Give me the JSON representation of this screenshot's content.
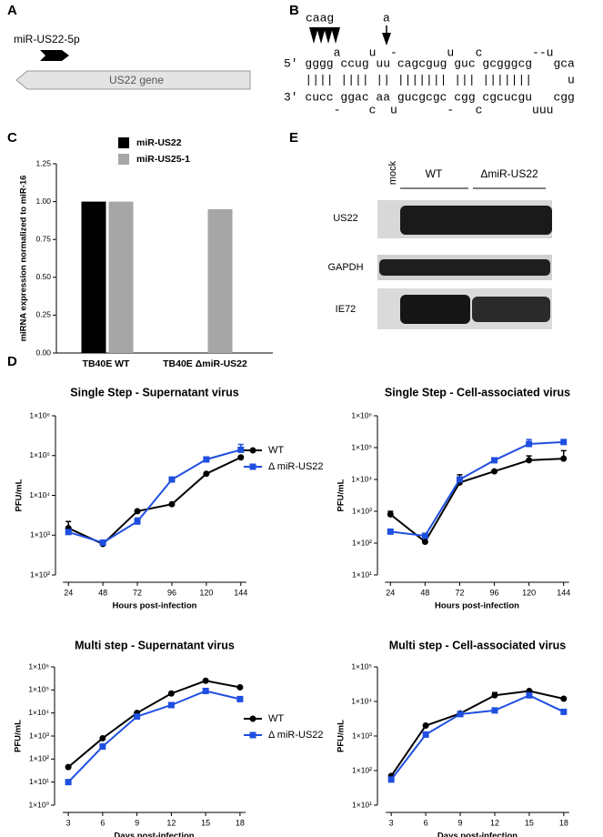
{
  "panel_labels": [
    "A",
    "B",
    "C",
    "D",
    "E"
  ],
  "gene_diagram": {
    "mirna": "miR-US22-5p",
    "gene": "US22 gene"
  },
  "hairpin": {
    "mutation_multi": "caag",
    "mutation_single": "a",
    "lines": [
      "       a    u  -       u   c       --u",
      "5′ gggg ccug uu cagcgug guc gcgggcg   gca",
      "   |||| |||| || ||||||| ||| |||||||     u",
      "3′ cucc ggac aa gucgcgc cgg cgcucgu   cgg",
      "       -    c  u       -   c       uuu"
    ]
  },
  "blot": {
    "lane_label": "mock",
    "groups": [
      "WT",
      "ΔmiR-US22"
    ],
    "rows": [
      "US22",
      "GAPDH",
      "IE72"
    ]
  },
  "chart_data": [
    {
      "type": "bar",
      "ylabel": "miRNA expression normalized to miR-16",
      "categories": [
        "TB40E WT",
        "TB40E ΔmiR-US22"
      ],
      "series": [
        {
          "name": "miR-US22",
          "color": "#000000",
          "values": [
            1.0,
            0
          ]
        },
        {
          "name": "miR-US25-1",
          "color": "#a6a6a6",
          "values": [
            1.0,
            0.95
          ]
        }
      ],
      "ylim": [
        0,
        1.25
      ],
      "yticks": [
        {
          "value": 0,
          "label": "0.00"
        },
        {
          "value": 0.25,
          "label": "0.25"
        },
        {
          "value": 0.5,
          "label": "0.50"
        },
        {
          "value": 0.75,
          "label": "0.75"
        },
        {
          "value": 1,
          "label": "1.00"
        },
        {
          "value": 1.25,
          "label": "1.25"
        }
      ]
    },
    {
      "type": "line",
      "title": "Single Step - Supernatant virus",
      "xlabel": "Hours post-infection",
      "ylabel": "PFU/mL",
      "log_y": true,
      "x": [
        24,
        48,
        72,
        96,
        120,
        144
      ],
      "xlim": [
        15,
        153
      ],
      "xticks": [
        24,
        48,
        72,
        96,
        120,
        144
      ],
      "ylim": [
        100,
        1000000
      ],
      "yticks": [
        {
          "value": 100,
          "label": "1×10²"
        },
        {
          "value": 1000,
          "label": "1×10³"
        },
        {
          "value": 10000,
          "label": "1×10⁴"
        },
        {
          "value": 100000,
          "label": "1×10⁵"
        },
        {
          "value": 1000000,
          "label": "1×10⁶"
        }
      ],
      "series": [
        {
          "name": "WT",
          "color": "#000000",
          "values": [
            1500,
            600,
            4000,
            6000,
            35000,
            90000
          ],
          "errors": [
            700,
            null,
            null,
            null,
            null,
            null
          ]
        },
        {
          "name": "Δ miR-US22",
          "color": "#1f4fe0",
          "values": [
            1200,
            650,
            2200,
            25000,
            80000,
            140000
          ],
          "errors": [
            null,
            null,
            500,
            null,
            null,
            50000
          ]
        }
      ]
    },
    {
      "type": "line",
      "title": "Single Step - Cell-associated virus",
      "xlabel": "Hours post-infection",
      "ylabel": "PFU/mL",
      "log_y": true,
      "x": [
        24,
        48,
        72,
        96,
        120,
        144
      ],
      "xlim": [
        15,
        153
      ],
      "xticks": [
        24,
        48,
        72,
        96,
        120,
        144
      ],
      "ylim": [
        10,
        1000000
      ],
      "yticks": [
        {
          "value": 10,
          "label": "1×10¹"
        },
        {
          "value": 100,
          "label": "1×10²"
        },
        {
          "value": 1000,
          "label": "1×10³"
        },
        {
          "value": 10000,
          "label": "1×10⁴"
        },
        {
          "value": 100000,
          "label": "1×10⁵"
        },
        {
          "value": 1000000,
          "label": "1×10⁶"
        }
      ],
      "series": [
        {
          "color": "#000000",
          "values": [
            800,
            110,
            8000,
            18000,
            40000,
            45000
          ],
          "errors": [
            200,
            null,
            6000,
            null,
            15000,
            35000
          ]
        },
        {
          "color": "#1f4fe0",
          "values": [
            230,
            170,
            10000,
            40000,
            130000,
            150000
          ],
          "errors": [
            null,
            null,
            null,
            null,
            50000,
            null
          ]
        }
      ]
    },
    {
      "type": "line",
      "title": "Multi step - Supernatant virus",
      "xlabel": "Days post-infection",
      "ylabel": "PFU/mL",
      "log_y": true,
      "x": [
        3,
        6,
        9,
        12,
        15,
        18
      ],
      "xlim": [
        1.8,
        19.2
      ],
      "xticks": [
        3,
        6,
        9,
        12,
        15,
        18
      ],
      "ylim": [
        1,
        1000000
      ],
      "yticks": [
        {
          "value": 1,
          "label": "1×10⁰"
        },
        {
          "value": 10,
          "label": "1×10¹"
        },
        {
          "value": 100,
          "label": "1×10²"
        },
        {
          "value": 1000,
          "label": "1×10³"
        },
        {
          "value": 10000,
          "label": "1×10⁴"
        },
        {
          "value": 100000,
          "label": "1×10⁵"
        },
        {
          "value": 1000000,
          "label": "1×10⁶"
        }
      ],
      "series": [
        {
          "name": "WT",
          "color": "#000000",
          "values": [
            45,
            800,
            10000,
            70000,
            250000,
            130000
          ]
        },
        {
          "name": "Δ miR-US22",
          "color": "#1f4fe0",
          "values": [
            10,
            350,
            7000,
            22000,
            90000,
            40000
          ]
        }
      ]
    },
    {
      "type": "line",
      "title": "Multi step - Cell-associated virus",
      "xlabel": "Days post-infection",
      "ylabel": "PFU/mL",
      "log_y": true,
      "x": [
        3,
        6,
        9,
        12,
        15,
        18
      ],
      "xlim": [
        1.8,
        19.2
      ],
      "xticks": [
        3,
        6,
        9,
        12,
        15,
        18
      ],
      "ylim": [
        10,
        100000
      ],
      "yticks": [
        {
          "value": 10,
          "label": "1×10¹"
        },
        {
          "value": 100,
          "label": "1×10²"
        },
        {
          "value": 1000,
          "label": "1×10³"
        },
        {
          "value": 10000,
          "label": "1×10⁴"
        },
        {
          "value": 100000,
          "label": "1×10⁵"
        }
      ],
      "series": [
        {
          "color": "#000000",
          "values": [
            70,
            2000,
            4500,
            15000,
            20000,
            12000
          ],
          "errors": [
            null,
            null,
            null,
            3000,
            null,
            null
          ]
        },
        {
          "color": "#1f4fe0",
          "values": [
            55,
            1100,
            4300,
            5500,
            15000,
            5000
          ]
        }
      ]
    }
  ]
}
